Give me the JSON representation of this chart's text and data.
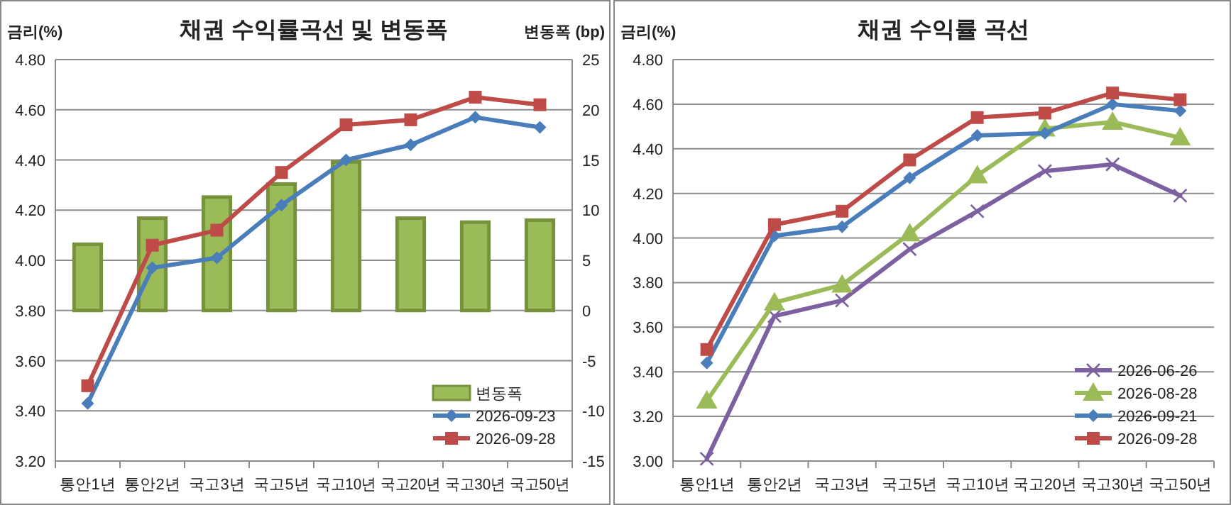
{
  "chart_data": [
    {
      "type": "line",
      "title": "채권 수익률곡선 및 변동폭",
      "ylabel": "금리(%)",
      "y2label": "변동폭 (bp)",
      "categories": [
        "통안1년",
        "통안2년",
        "국고3년",
        "국고5년",
        "국고10년",
        "국고20년",
        "국고30년",
        "국고50년"
      ],
      "ylim": [
        3.2,
        4.8
      ],
      "yticks": [
        {
          "value": 3.2,
          "label": "3.20"
        },
        {
          "value": 3.4,
          "label": "3.40"
        },
        {
          "value": 3.6,
          "label": "3.60"
        },
        {
          "value": 3.8,
          "label": "3.80"
        },
        {
          "value": 4.0,
          "label": "4.00"
        },
        {
          "value": 4.2,
          "label": "4.20"
        },
        {
          "value": 4.4,
          "label": "4.40"
        },
        {
          "value": 4.6,
          "label": "4.60"
        },
        {
          "value": 4.8,
          "label": "4.80"
        }
      ],
      "y2lim": [
        -15,
        25
      ],
      "y2ticks": [
        -15,
        -10,
        -5,
        0,
        5,
        10,
        15,
        20,
        25
      ],
      "grid": "y",
      "legend": "bottom right",
      "series": [
        {
          "name": "변동폭",
          "type": "bar",
          "axis": "y2",
          "color": "#9bbb59",
          "values": [
            6.6,
            9.2,
            11.3,
            12.6,
            14.8,
            9.2,
            8.8,
            9.0
          ]
        },
        {
          "name": "2026-09-23",
          "marker": "diamond",
          "color": "#4a7ebb",
          "values": [
            3.43,
            3.97,
            4.01,
            4.22,
            4.4,
            4.46,
            4.57,
            4.53
          ]
        },
        {
          "name": "2026-09-28",
          "type": "line",
          "marker": "square",
          "color": "#be4b48",
          "values": [
            3.5,
            4.06,
            4.12,
            4.35,
            4.54,
            4.56,
            4.65,
            4.62
          ]
        }
      ]
    },
    {
      "type": "line",
      "title": "채권 수익률 곡선",
      "ylabel": "금리(%)",
      "categories": [
        "통안1년",
        "통안2년",
        "국고3년",
        "국고5년",
        "국고10년",
        "국고20년",
        "국고30년",
        "국고50년"
      ],
      "ylim": [
        3.0,
        4.8
      ],
      "yticks": [
        {
          "value": 3.0,
          "label": "3.00"
        },
        {
          "value": 3.2,
          "label": "3.20"
        },
        {
          "value": 3.4,
          "label": "3.40"
        },
        {
          "value": 3.6,
          "label": "3.60"
        },
        {
          "value": 3.8,
          "label": "3.80"
        },
        {
          "value": 4.0,
          "label": "4.00"
        },
        {
          "value": 4.2,
          "label": "4.20"
        },
        {
          "value": 4.4,
          "label": "4.40"
        },
        {
          "value": 4.6,
          "label": "4.60"
        },
        {
          "value": 4.8,
          "label": "4.80"
        }
      ],
      "grid": "y",
      "legend": "bottom right",
      "series": [
        {
          "name": "2026-06-26",
          "marker": "cross",
          "color": "#7d60a0",
          "values": [
            3.01,
            3.65,
            3.72,
            3.95,
            4.12,
            4.3,
            4.33,
            4.19
          ]
        },
        {
          "name": "2026-08-28",
          "marker": "triangle",
          "color": "#9bbb59",
          "values": [
            3.27,
            3.71,
            3.79,
            4.02,
            4.28,
            4.49,
            4.52,
            4.45
          ]
        },
        {
          "name": "2026-09-21",
          "marker": "diamond",
          "color": "#4a7ebb",
          "values": [
            3.44,
            4.01,
            4.05,
            4.27,
            4.46,
            4.47,
            4.6,
            4.57
          ]
        },
        {
          "name": "2026-09-28",
          "type": "line",
          "marker": "square",
          "color": "#be4b48",
          "values": [
            3.5,
            4.06,
            4.12,
            4.35,
            4.54,
            4.56,
            4.65,
            4.62
          ]
        }
      ]
    }
  ]
}
